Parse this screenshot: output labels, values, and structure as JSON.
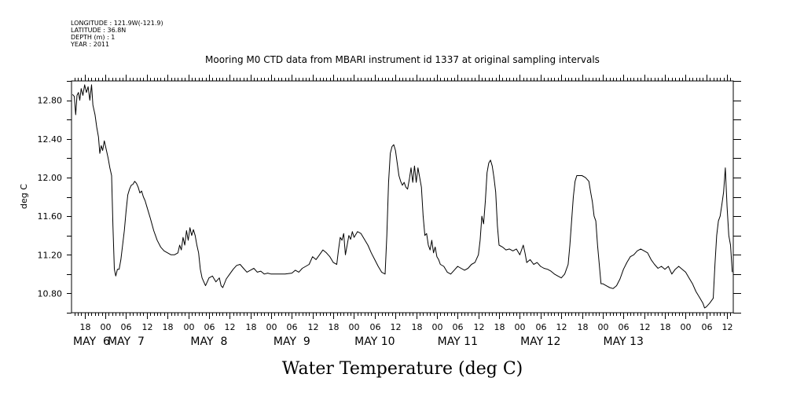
{
  "header": {
    "longitude": "LONGITUDE : 121.9W(-121.9)",
    "latitude": "LATITUDE : 36.8N",
    "depth": "DEPTH (m) : 1",
    "year": "YEAR : 2011"
  },
  "chart_data": {
    "type": "line",
    "title": "Mooring M0 CTD data from MBARI instrument id 1337 at original sampling intervals",
    "xlabel": "Water Temperature (deg C)",
    "ylabel": "deg C",
    "x_unit": "hours since May 6 00:00",
    "xlim": [
      -9.8,
      181.8
    ],
    "ylim": [
      10.6,
      13.0
    ],
    "y_ticks": [
      10.8,
      11.2,
      11.6,
      12.0,
      12.4,
      12.8
    ],
    "y_tick_labels": [
      "10.80",
      "11.20",
      "11.60",
      "12.00",
      "12.40",
      "12.80"
    ],
    "hour_tick_labels": [
      {
        "h": -6,
        "label": "18"
      },
      {
        "h": 0,
        "label": "00"
      },
      {
        "h": 6,
        "label": "06"
      },
      {
        "h": 12,
        "label": "12"
      },
      {
        "h": 18,
        "label": "18"
      },
      {
        "h": 24,
        "label": "00"
      },
      {
        "h": 30,
        "label": "06"
      },
      {
        "h": 36,
        "label": "12"
      },
      {
        "h": 42,
        "label": "18"
      },
      {
        "h": 48,
        "label": "00"
      },
      {
        "h": 54,
        "label": "06"
      },
      {
        "h": 60,
        "label": "12"
      },
      {
        "h": 66,
        "label": "18"
      },
      {
        "h": 72,
        "label": "00"
      },
      {
        "h": 78,
        "label": "06"
      },
      {
        "h": 84,
        "label": "12"
      },
      {
        "h": 90,
        "label": "18"
      },
      {
        "h": 96,
        "label": "00"
      },
      {
        "h": 102,
        "label": "06"
      },
      {
        "h": 108,
        "label": "12"
      },
      {
        "h": 114,
        "label": "18"
      },
      {
        "h": 120,
        "label": "00"
      },
      {
        "h": 126,
        "label": "06"
      },
      {
        "h": 132,
        "label": "12"
      },
      {
        "h": 138,
        "label": "18"
      },
      {
        "h": 144,
        "label": "00"
      },
      {
        "h": 150,
        "label": "06"
      },
      {
        "h": 156,
        "label": "12"
      },
      {
        "h": 162,
        "label": "18"
      },
      {
        "h": 168,
        "label": "00"
      },
      {
        "h": 174,
        "label": "06"
      },
      {
        "h": 180,
        "label": "12"
      }
    ],
    "day_labels": [
      {
        "h": -4,
        "label": "MAY  6"
      },
      {
        "h": 6,
        "label": "MAY  7"
      },
      {
        "h": 30,
        "label": "MAY  8"
      },
      {
        "h": 54,
        "label": "MAY  9"
      },
      {
        "h": 78,
        "label": "MAY 10"
      },
      {
        "h": 102,
        "label": "MAY 11"
      },
      {
        "h": 126,
        "label": "MAY 12"
      },
      {
        "h": 150,
        "label": "MAY 13"
      }
    ],
    "series": [
      {
        "color": "#000000",
        "points": [
          [
            -9.5,
            12.86
          ],
          [
            -9,
            12.84
          ],
          [
            -8.6,
            12.65
          ],
          [
            -8.2,
            12.85
          ],
          [
            -7.8,
            12.88
          ],
          [
            -7.4,
            12.8
          ],
          [
            -7,
            12.92
          ],
          [
            -6.5,
            12.85
          ],
          [
            -6,
            12.96
          ],
          [
            -5.5,
            12.88
          ],
          [
            -5,
            12.94
          ],
          [
            -4.5,
            12.8
          ],
          [
            -4,
            12.96
          ],
          [
            -3.6,
            12.75
          ],
          [
            -3,
            12.65
          ],
          [
            -2.5,
            12.52
          ],
          [
            -2,
            12.42
          ],
          [
            -1.6,
            12.25
          ],
          [
            -1.2,
            12.33
          ],
          [
            -0.8,
            12.28
          ],
          [
            -0.3,
            12.38
          ],
          [
            0.2,
            12.3
          ],
          [
            0.8,
            12.2
          ],
          [
            1.3,
            12.1
          ],
          [
            1.8,
            12.02
          ],
          [
            2.2,
            11.5
          ],
          [
            2.6,
            11.05
          ],
          [
            3,
            10.98
          ],
          [
            3.5,
            11.05
          ],
          [
            4,
            11.05
          ],
          [
            4.5,
            11.15
          ],
          [
            5,
            11.3
          ],
          [
            5.5,
            11.45
          ],
          [
            6,
            11.65
          ],
          [
            6.5,
            11.82
          ],
          [
            7,
            11.88
          ],
          [
            7.5,
            11.92
          ],
          [
            8,
            11.93
          ],
          [
            8.5,
            11.96
          ],
          [
            9,
            11.94
          ],
          [
            9.5,
            11.9
          ],
          [
            10,
            11.84
          ],
          [
            10.5,
            11.86
          ],
          [
            11,
            11.8
          ],
          [
            11.5,
            11.76
          ],
          [
            12,
            11.7
          ],
          [
            13,
            11.58
          ],
          [
            14,
            11.45
          ],
          [
            15,
            11.35
          ],
          [
            16,
            11.28
          ],
          [
            17,
            11.24
          ],
          [
            18,
            11.22
          ],
          [
            19,
            11.2
          ],
          [
            20,
            11.2
          ],
          [
            21,
            11.22
          ],
          [
            21.5,
            11.3
          ],
          [
            22,
            11.25
          ],
          [
            22.5,
            11.38
          ],
          [
            23,
            11.3
          ],
          [
            23.5,
            11.45
          ],
          [
            24,
            11.35
          ],
          [
            24.5,
            11.48
          ],
          [
            25,
            11.4
          ],
          [
            25.5,
            11.46
          ],
          [
            26,
            11.4
          ],
          [
            26.5,
            11.3
          ],
          [
            27,
            11.22
          ],
          [
            27.5,
            11.05
          ],
          [
            28,
            10.96
          ],
          [
            28.5,
            10.92
          ],
          [
            29,
            10.88
          ],
          [
            29.5,
            10.92
          ],
          [
            30,
            10.96
          ],
          [
            31,
            10.98
          ],
          [
            32,
            10.92
          ],
          [
            33,
            10.96
          ],
          [
            33.5,
            10.88
          ],
          [
            34,
            10.86
          ],
          [
            35,
            10.95
          ],
          [
            36,
            11.0
          ],
          [
            37,
            11.05
          ],
          [
            38,
            11.09
          ],
          [
            39,
            11.1
          ],
          [
            40,
            11.06
          ],
          [
            41,
            11.02
          ],
          [
            42,
            11.04
          ],
          [
            43,
            11.06
          ],
          [
            44,
            11.02
          ],
          [
            45,
            11.03
          ],
          [
            46,
            11.0
          ],
          [
            47,
            11.01
          ],
          [
            48,
            11.0
          ],
          [
            50,
            11.0
          ],
          [
            52,
            11.0
          ],
          [
            54,
            11.01
          ],
          [
            55,
            11.04
          ],
          [
            56,
            11.02
          ],
          [
            57,
            11.06
          ],
          [
            58,
            11.08
          ],
          [
            59,
            11.1
          ],
          [
            60,
            11.18
          ],
          [
            61,
            11.15
          ],
          [
            62,
            11.2
          ],
          [
            63,
            11.25
          ],
          [
            64,
            11.22
          ],
          [
            65,
            11.18
          ],
          [
            66,
            11.12
          ],
          [
            67,
            11.1
          ],
          [
            67.5,
            11.25
          ],
          [
            68,
            11.38
          ],
          [
            68.5,
            11.35
          ],
          [
            69,
            11.42
          ],
          [
            69.5,
            11.2
          ],
          [
            70,
            11.3
          ],
          [
            70.5,
            11.4
          ],
          [
            71,
            11.36
          ],
          [
            71.5,
            11.44
          ],
          [
            72,
            11.38
          ],
          [
            73,
            11.44
          ],
          [
            74,
            11.42
          ],
          [
            75,
            11.36
          ],
          [
            76,
            11.3
          ],
          [
            77,
            11.22
          ],
          [
            78,
            11.15
          ],
          [
            79,
            11.08
          ],
          [
            80,
            11.02
          ],
          [
            81,
            11.0
          ],
          [
            81.5,
            11.4
          ],
          [
            82,
            11.95
          ],
          [
            82.5,
            12.25
          ],
          [
            83,
            12.32
          ],
          [
            83.5,
            12.34
          ],
          [
            84,
            12.28
          ],
          [
            84.5,
            12.15
          ],
          [
            85,
            12.02
          ],
          [
            85.5,
            11.96
          ],
          [
            86,
            11.92
          ],
          [
            86.5,
            11.95
          ],
          [
            87,
            11.9
          ],
          [
            87.5,
            11.88
          ],
          [
            88,
            11.98
          ],
          [
            88.5,
            12.1
          ],
          [
            89,
            11.95
          ],
          [
            89.5,
            12.12
          ],
          [
            90,
            11.95
          ],
          [
            90.5,
            12.1
          ],
          [
            91,
            12.0
          ],
          [
            91.5,
            11.9
          ],
          [
            92,
            11.6
          ],
          [
            92.5,
            11.4
          ],
          [
            93,
            11.42
          ],
          [
            93.5,
            11.3
          ],
          [
            94,
            11.25
          ],
          [
            94.5,
            11.35
          ],
          [
            95,
            11.22
          ],
          [
            95.5,
            11.28
          ],
          [
            96,
            11.18
          ],
          [
            96.5,
            11.15
          ],
          [
            97,
            11.1
          ],
          [
            98,
            11.08
          ],
          [
            99,
            11.02
          ],
          [
            100,
            11.0
          ],
          [
            101,
            11.04
          ],
          [
            102,
            11.08
          ],
          [
            103,
            11.06
          ],
          [
            104,
            11.04
          ],
          [
            105,
            11.06
          ],
          [
            106,
            11.1
          ],
          [
            107,
            11.12
          ],
          [
            108,
            11.2
          ],
          [
            108.5,
            11.35
          ],
          [
            109,
            11.6
          ],
          [
            109.5,
            11.52
          ],
          [
            110,
            11.75
          ],
          [
            110.5,
            12.05
          ],
          [
            111,
            12.15
          ],
          [
            111.5,
            12.18
          ],
          [
            112,
            12.12
          ],
          [
            112.5,
            12.0
          ],
          [
            113,
            11.85
          ],
          [
            113.5,
            11.5
          ],
          [
            114,
            11.3
          ],
          [
            115,
            11.28
          ],
          [
            116,
            11.25
          ],
          [
            117,
            11.26
          ],
          [
            118,
            11.24
          ],
          [
            119,
            11.26
          ],
          [
            120,
            11.2
          ],
          [
            121,
            11.3
          ],
          [
            121.5,
            11.22
          ],
          [
            122,
            11.12
          ],
          [
            123,
            11.15
          ],
          [
            124,
            11.1
          ],
          [
            125,
            11.12
          ],
          [
            126,
            11.08
          ],
          [
            127,
            11.06
          ],
          [
            128,
            11.05
          ],
          [
            129,
            11.03
          ],
          [
            130,
            11.0
          ],
          [
            131,
            10.98
          ],
          [
            132,
            10.96
          ],
          [
            133,
            11.0
          ],
          [
            134,
            11.1
          ],
          [
            134.5,
            11.3
          ],
          [
            135,
            11.55
          ],
          [
            135.5,
            11.8
          ],
          [
            136,
            11.96
          ],
          [
            136.5,
            12.02
          ],
          [
            137,
            12.02
          ],
          [
            138,
            12.02
          ],
          [
            139,
            12.0
          ],
          [
            140,
            11.96
          ],
          [
            140.5,
            11.85
          ],
          [
            141,
            11.75
          ],
          [
            141.5,
            11.6
          ],
          [
            142,
            11.55
          ],
          [
            142.5,
            11.3
          ],
          [
            143,
            11.1
          ],
          [
            143.5,
            10.9
          ],
          [
            144,
            10.9
          ],
          [
            145,
            10.88
          ],
          [
            146,
            10.86
          ],
          [
            147,
            10.85
          ],
          [
            148,
            10.88
          ],
          [
            149,
            10.95
          ],
          [
            150,
            11.05
          ],
          [
            151,
            11.12
          ],
          [
            152,
            11.18
          ],
          [
            153,
            11.2
          ],
          [
            154,
            11.24
          ],
          [
            155,
            11.26
          ],
          [
            156,
            11.24
          ],
          [
            157,
            11.22
          ],
          [
            158,
            11.15
          ],
          [
            159,
            11.1
          ],
          [
            160,
            11.06
          ],
          [
            161,
            11.08
          ],
          [
            162,
            11.05
          ],
          [
            163,
            11.08
          ],
          [
            164,
            11.0
          ],
          [
            165,
            11.05
          ],
          [
            166,
            11.08
          ],
          [
            167,
            11.05
          ],
          [
            168,
            11.02
          ],
          [
            169,
            10.96
          ],
          [
            170,
            10.9
          ],
          [
            171,
            10.82
          ],
          [
            172,
            10.76
          ],
          [
            173,
            10.7
          ],
          [
            173.5,
            10.65
          ],
          [
            174,
            10.66
          ],
          [
            175,
            10.7
          ],
          [
            176,
            10.75
          ],
          [
            176.5,
            11.1
          ],
          [
            177,
            11.4
          ],
          [
            177.5,
            11.55
          ],
          [
            178,
            11.6
          ],
          [
            178.5,
            11.72
          ],
          [
            179,
            11.85
          ],
          [
            179.5,
            12.1
          ],
          [
            180,
            11.7
          ],
          [
            180.5,
            11.4
          ],
          [
            181,
            11.3
          ],
          [
            181.5,
            11.02
          ]
        ]
      }
    ]
  }
}
